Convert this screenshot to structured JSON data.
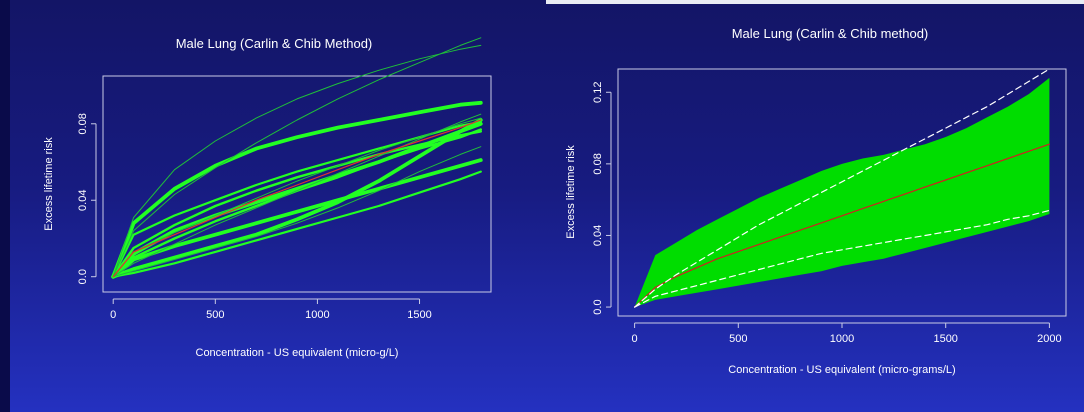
{
  "chart_data": [
    {
      "type": "line",
      "title": "Male Lung (Carlin & Chib Method)",
      "xlabel": "Concentration - US equivalent (micro-g/L)",
      "ylabel": "Excess lifetime risk",
      "xlim": [
        -50,
        1850
      ],
      "ylim": [
        -0.008,
        0.105
      ],
      "xticks": [
        0,
        500,
        1000,
        1500
      ],
      "yticks": [
        0.0,
        0.04,
        0.08
      ],
      "xtick_labels": [
        "0",
        "500",
        "1000",
        "1500"
      ],
      "ytick_labels": [
        "0.0",
        "0.04",
        "0.08"
      ],
      "x": [
        0,
        100,
        300,
        500,
        700,
        900,
        1100,
        1300,
        1500,
        1700,
        1800
      ],
      "series": [
        {
          "values": [
            0,
            0.028,
            0.046,
            0.058,
            0.067,
            0.073,
            0.078,
            0.082,
            0.086,
            0.09,
            0.091
          ],
          "color": "#22ff22",
          "width": 3.8
        },
        {
          "values": [
            0,
            0.012,
            0.024,
            0.032,
            0.039,
            0.046,
            0.053,
            0.06,
            0.068,
            0.076,
            0.08
          ],
          "color": "#22ff22",
          "width": 3.8
        },
        {
          "values": [
            0,
            0.009,
            0.016,
            0.022,
            0.028,
            0.034,
            0.04,
            0.046,
            0.052,
            0.058,
            0.061
          ],
          "color": "#22ff22",
          "width": 3.8
        },
        {
          "values": [
            0,
            0.004,
            0.01,
            0.016,
            0.022,
            0.03,
            0.039,
            0.05,
            0.063,
            0.076,
            0.082
          ],
          "color": "#22ff22",
          "width": 3.8
        },
        {
          "values": [
            0,
            0.01,
            0.02,
            0.029,
            0.037,
            0.045,
            0.052,
            0.06,
            0.067,
            0.073,
            0.077
          ],
          "color": "#22ff22",
          "width": 2.4
        },
        {
          "values": [
            0,
            0.015,
            0.027,
            0.037,
            0.045,
            0.052,
            0.058,
            0.064,
            0.069,
            0.074,
            0.076
          ],
          "color": "#22ff22",
          "width": 2.4
        },
        {
          "values": [
            0,
            0.002,
            0.007,
            0.013,
            0.019,
            0.025,
            0.031,
            0.037,
            0.044,
            0.051,
            0.055
          ],
          "color": "#22ff22",
          "width": 2.2
        },
        {
          "values": [
            0,
            0.022,
            0.032,
            0.04,
            0.048,
            0.055,
            0.061,
            0.067,
            0.073,
            0.079,
            0.081
          ],
          "color": "#22ff22",
          "width": 2.2
        },
        {
          "values": [
            0,
            0.031,
            0.056,
            0.071,
            0.083,
            0.093,
            0.101,
            0.108,
            0.114,
            0.119,
            0.121
          ],
          "color": "#1fbf3a",
          "width": 1.0
        },
        {
          "values": [
            0,
            0.024,
            0.043,
            0.057,
            0.07,
            0.082,
            0.093,
            0.103,
            0.112,
            0.121,
            0.125
          ],
          "color": "#1fbf3a",
          "width": 1.0
        },
        {
          "values": [
            0,
            0.003,
            0.009,
            0.015,
            0.021,
            0.028,
            0.036,
            0.045,
            0.055,
            0.064,
            0.068
          ],
          "color": "#1fbf3a",
          "width": 1.0
        },
        {
          "values": [
            0,
            0.007,
            0.017,
            0.027,
            0.036,
            0.045,
            0.054,
            0.063,
            0.072,
            0.081,
            0.085
          ],
          "color": "#1fbf3a",
          "width": 1.0
        },
        {
          "values": [
            0,
            0.013,
            0.023,
            0.032,
            0.041,
            0.05,
            0.058,
            0.066,
            0.073,
            0.08,
            0.083
          ],
          "color": "#1fbf3a",
          "width": 1.0
        },
        {
          "values": [
            0,
            0.013,
            0.022,
            0.031,
            0.04,
            0.048,
            0.056,
            0.064,
            0.071,
            0.078,
            0.082
          ],
          "color": "#e03030",
          "width": 1.2
        }
      ]
    },
    {
      "type": "area",
      "title": "Male Lung (Carlin & Chib method)",
      "xlabel": "Concentration - US equivalent (micro-grams/L)",
      "ylabel": "Excess lifetime risk",
      "xlim": [
        -80,
        2080
      ],
      "ylim": [
        -0.005,
        0.133
      ],
      "xticks": [
        0,
        500,
        1000,
        1500,
        2000
      ],
      "yticks": [
        0.0,
        0.04,
        0.08,
        0.12
      ],
      "xtick_labels": [
        "0",
        "500",
        "1000",
        "1500",
        "2000"
      ],
      "ytick_labels": [
        "0.0",
        "0.04",
        "0.08",
        "0.12"
      ],
      "x": [
        0,
        100,
        200,
        300,
        400,
        500,
        600,
        700,
        800,
        900,
        1000,
        1100,
        1200,
        1300,
        1400,
        1500,
        1600,
        1700,
        1800,
        1900,
        2000
      ],
      "band_upper": [
        0,
        0.029,
        0.036,
        0.043,
        0.049,
        0.055,
        0.061,
        0.066,
        0.071,
        0.076,
        0.08,
        0.083,
        0.085,
        0.088,
        0.091,
        0.095,
        0.1,
        0.106,
        0.112,
        0.119,
        0.128
      ],
      "band_lower": [
        0,
        0.004,
        0.006,
        0.008,
        0.01,
        0.012,
        0.014,
        0.016,
        0.018,
        0.02,
        0.023,
        0.025,
        0.027,
        0.03,
        0.033,
        0.036,
        0.039,
        0.042,
        0.045,
        0.048,
        0.052
      ],
      "band_color": "#00dd00",
      "series": [
        {
          "values": [
            0,
            0.011,
            0.017,
            0.022,
            0.027,
            0.031,
            0.035,
            0.039,
            0.043,
            0.047,
            0.051,
            0.055,
            0.059,
            0.063,
            0.067,
            0.071,
            0.075,
            0.079,
            0.083,
            0.087,
            0.091
          ],
          "color": "#d02020",
          "width": 1.2,
          "dash": ""
        },
        {
          "values": [
            0,
            0.01,
            0.018,
            0.025,
            0.032,
            0.039,
            0.046,
            0.052,
            0.058,
            0.064,
            0.07,
            0.076,
            0.082,
            0.088,
            0.094,
            0.1,
            0.106,
            0.112,
            0.119,
            0.126,
            0.133
          ],
          "color": "#ffffff",
          "width": 1.2,
          "dash": "6 4"
        },
        {
          "values": [
            0,
            0.006,
            0.009,
            0.012,
            0.015,
            0.018,
            0.021,
            0.024,
            0.027,
            0.03,
            0.032,
            0.034,
            0.036,
            0.038,
            0.04,
            0.042,
            0.044,
            0.046,
            0.049,
            0.051,
            0.054
          ],
          "color": "#ffffff",
          "width": 1.2,
          "dash": "6 4"
        }
      ]
    }
  ]
}
